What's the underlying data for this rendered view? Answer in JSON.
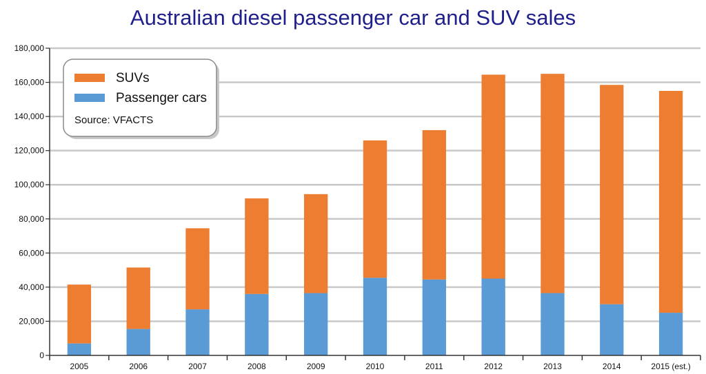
{
  "chart_data": {
    "type": "bar",
    "stacked": true,
    "title": "Australian diesel passenger car and SUV sales",
    "categories": [
      "2005",
      "2006",
      "2007",
      "2008",
      "2009",
      "2010",
      "2011",
      "2012",
      "2013",
      "2014",
      "2015 (est.)"
    ],
    "series": [
      {
        "name": "Passenger cars",
        "color": "#5b9bd5",
        "values": [
          7000,
          15500,
          27000,
          36000,
          36500,
          45500,
          44500,
          45000,
          36500,
          30000,
          25000
        ]
      },
      {
        "name": "SUVs",
        "color": "#ed7d31",
        "values": [
          34500,
          36000,
          47500,
          56000,
          58000,
          80500,
          87500,
          119500,
          128500,
          128500,
          130000
        ]
      }
    ],
    "ylim": [
      0,
      180000
    ],
    "yticks": [
      "0",
      "20,000",
      "40,000",
      "60,000",
      "80,000",
      "100,000",
      "120,000",
      "140,000",
      "160,000",
      "180,000"
    ],
    "grid": true,
    "legend_position": "top-left",
    "source_note": "Source: VFACTS",
    "xlabel": "",
    "ylabel": ""
  }
}
